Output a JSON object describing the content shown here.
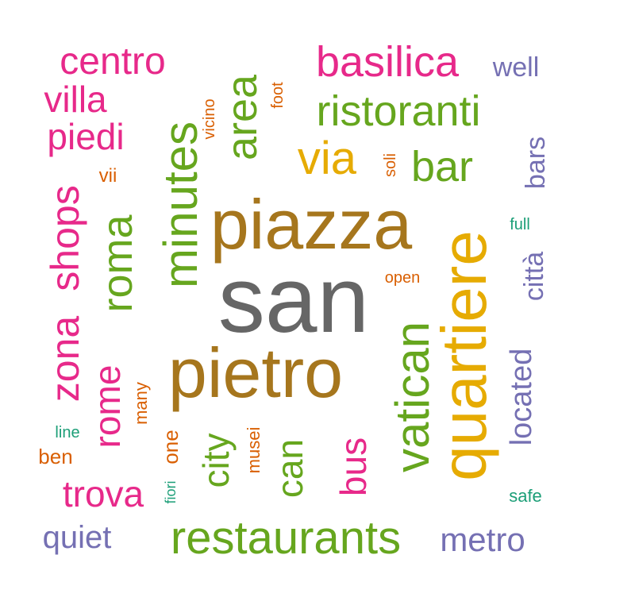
{
  "palette": {
    "pink": "#e7298a",
    "green": "#66a61e",
    "gold": "#e6ab02",
    "brown": "#a6761d",
    "gray": "#666666",
    "purple": "#7570b3",
    "orange": "#d95f02",
    "teal": "#1b9e77"
  },
  "words": [
    {
      "text": "san",
      "color": "gray",
      "rotated": false
    },
    {
      "text": "piazza",
      "color": "brown",
      "rotated": false
    },
    {
      "text": "pietro",
      "color": "brown",
      "rotated": false
    },
    {
      "text": "quartiere",
      "color": "gold",
      "rotated": true
    },
    {
      "text": "vatican",
      "color": "green",
      "rotated": true
    },
    {
      "text": "minutes",
      "color": "green",
      "rotated": true
    },
    {
      "text": "restaurants",
      "color": "green",
      "rotated": false
    },
    {
      "text": "roma",
      "color": "green",
      "rotated": true
    },
    {
      "text": "area",
      "color": "green",
      "rotated": true
    },
    {
      "text": "via",
      "color": "gold",
      "rotated": false
    },
    {
      "text": "basilica",
      "color": "pink",
      "rotated": false
    },
    {
      "text": "ristoranti",
      "color": "green",
      "rotated": false
    },
    {
      "text": "bar",
      "color": "green",
      "rotated": false
    },
    {
      "text": "centro",
      "color": "pink",
      "rotated": false
    },
    {
      "text": "shops",
      "color": "pink",
      "rotated": true
    },
    {
      "text": "zona",
      "color": "pink",
      "rotated": true
    },
    {
      "text": "rome",
      "color": "pink",
      "rotated": true
    },
    {
      "text": "city",
      "color": "green",
      "rotated": true
    },
    {
      "text": "can",
      "color": "green",
      "rotated": true
    },
    {
      "text": "bus",
      "color": "pink",
      "rotated": true
    },
    {
      "text": "trova",
      "color": "pink",
      "rotated": false
    },
    {
      "text": "piedi",
      "color": "pink",
      "rotated": false
    },
    {
      "text": "villa",
      "color": "pink",
      "rotated": false
    },
    {
      "text": "located",
      "color": "purple",
      "rotated": true
    },
    {
      "text": "metro",
      "color": "purple",
      "rotated": false
    },
    {
      "text": "città",
      "color": "purple",
      "rotated": true
    },
    {
      "text": "bars",
      "color": "purple",
      "rotated": true
    },
    {
      "text": "well",
      "color": "purple",
      "rotated": false
    },
    {
      "text": "quiet",
      "color": "purple",
      "rotated": false
    },
    {
      "text": "vicino",
      "color": "orange",
      "rotated": true
    },
    {
      "text": "foot",
      "color": "orange",
      "rotated": true
    },
    {
      "text": "soli",
      "color": "orange",
      "rotated": true
    },
    {
      "text": "vii",
      "color": "orange",
      "rotated": false
    },
    {
      "text": "open",
      "color": "orange",
      "rotated": false
    },
    {
      "text": "many",
      "color": "orange",
      "rotated": true
    },
    {
      "text": "one",
      "color": "orange",
      "rotated": true
    },
    {
      "text": "musei",
      "color": "orange",
      "rotated": true
    },
    {
      "text": "ben",
      "color": "orange",
      "rotated": false
    },
    {
      "text": "line",
      "color": "teal",
      "rotated": false
    },
    {
      "text": "fiori",
      "color": "teal",
      "rotated": true
    },
    {
      "text": "full",
      "color": "teal",
      "rotated": false
    },
    {
      "text": "safe",
      "color": "teal",
      "rotated": false
    }
  ]
}
